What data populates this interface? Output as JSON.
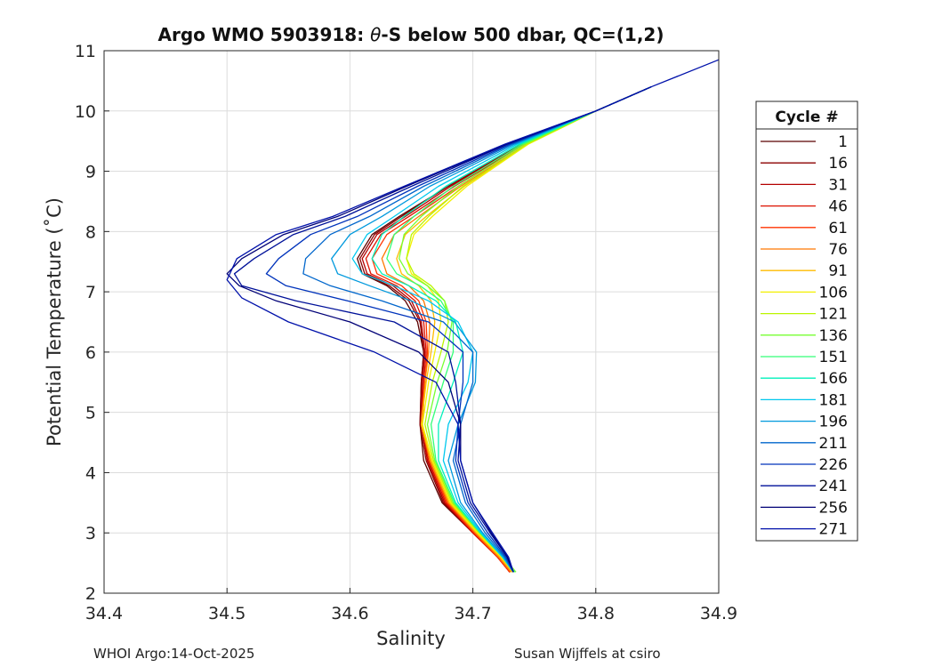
{
  "chart_data": {
    "type": "line",
    "title": "Argo WMO 5903918: θ-S below 500 dbar,  QC=(1,2)",
    "title_parts": {
      "prefix": "Argo WMO 5903918: ",
      "symbol": "θ",
      "suffix": "-S below 500 dbar,  QC=(1,2)"
    },
    "xlabel": "Salinity",
    "ylabel": "Potential Temperature (˚C)",
    "xlim": [
      34.4,
      34.9
    ],
    "ylim": [
      2,
      11
    ],
    "xticks": [
      "34.4",
      "34.5",
      "34.6",
      "34.7",
      "34.8",
      "34.9"
    ],
    "yticks": [
      "2",
      "3",
      "4",
      "5",
      "6",
      "7",
      "8",
      "9",
      "10",
      "11"
    ],
    "grid": true,
    "legend": {
      "title": "Cycle #",
      "placement": "right, outside plot",
      "entries": [
        {
          "label": "1",
          "color": "#5a0000"
        },
        {
          "label": "16",
          "color": "#8b0000"
        },
        {
          "label": "31",
          "color": "#b40000"
        },
        {
          "label": "46",
          "color": "#dd1100"
        },
        {
          "label": "61",
          "color": "#ff3300"
        },
        {
          "label": "76",
          "color": "#ff7700"
        },
        {
          "label": "91",
          "color": "#ffbb00"
        },
        {
          "label": "106",
          "color": "#f3f000"
        },
        {
          "label": "121",
          "color": "#bbf500"
        },
        {
          "label": "136",
          "color": "#77ff33"
        },
        {
          "label": "151",
          "color": "#33ff77"
        },
        {
          "label": "166",
          "color": "#00f0bb"
        },
        {
          "label": "181",
          "color": "#00c8ee"
        },
        {
          "label": "196",
          "color": "#0099dd"
        },
        {
          "label": "211",
          "color": "#0066cc"
        },
        {
          "label": "226",
          "color": "#0033bb"
        },
        {
          "label": "241",
          "color": "#001199"
        },
        {
          "label": "256",
          "color": "#000077"
        },
        {
          "label": "271",
          "color": "#0011aa"
        }
      ]
    },
    "series": [
      {
        "name": "1",
        "color": "#5a0000",
        "x": [
          34.845,
          34.8,
          34.74,
          34.68,
          34.64,
          34.618,
          34.606,
          34.61,
          34.63,
          34.645,
          34.655,
          34.66,
          34.658,
          34.657,
          34.66,
          34.675,
          34.7,
          34.72,
          34.73
        ],
        "y": [
          10.4,
          10.0,
          9.45,
          8.75,
          8.25,
          7.95,
          7.55,
          7.3,
          7.1,
          6.85,
          6.5,
          6.0,
          5.5,
          4.8,
          4.2,
          3.5,
          3.0,
          2.6,
          2.35
        ]
      },
      {
        "name": "16",
        "color": "#8b0000",
        "x": [
          34.845,
          34.8,
          34.74,
          34.68,
          34.642,
          34.62,
          34.608,
          34.612,
          34.632,
          34.648,
          34.657,
          34.66,
          34.658,
          34.657,
          34.662,
          34.676,
          34.7,
          34.72,
          34.73
        ],
        "y": [
          10.4,
          10.0,
          9.45,
          8.75,
          8.25,
          7.95,
          7.55,
          7.3,
          7.1,
          6.85,
          6.5,
          6.0,
          5.5,
          4.8,
          4.2,
          3.5,
          3.0,
          2.6,
          2.35
        ]
      },
      {
        "name": "31",
        "color": "#b40000",
        "x": [
          34.845,
          34.8,
          34.74,
          34.682,
          34.645,
          34.622,
          34.61,
          34.614,
          34.635,
          34.65,
          34.658,
          34.661,
          34.659,
          34.658,
          34.663,
          34.677,
          34.7,
          34.72,
          34.73
        ],
        "y": [
          10.4,
          10.0,
          9.45,
          8.75,
          8.25,
          7.95,
          7.55,
          7.3,
          7.1,
          6.85,
          6.5,
          6.0,
          5.5,
          4.8,
          4.2,
          3.5,
          3.0,
          2.6,
          2.35
        ]
      },
      {
        "name": "46",
        "color": "#dd1100",
        "x": [
          34.845,
          34.8,
          34.742,
          34.685,
          34.648,
          34.625,
          34.613,
          34.617,
          34.638,
          34.653,
          34.66,
          34.662,
          34.66,
          34.658,
          34.664,
          34.678,
          34.7,
          34.72,
          34.73
        ],
        "y": [
          10.4,
          10.0,
          9.45,
          8.75,
          8.25,
          7.95,
          7.55,
          7.3,
          7.1,
          6.85,
          6.5,
          6.0,
          5.5,
          4.8,
          4.2,
          3.5,
          3.0,
          2.6,
          2.35
        ]
      },
      {
        "name": "61",
        "color": "#ff3300",
        "x": [
          34.845,
          34.8,
          34.742,
          34.688,
          34.652,
          34.63,
          34.618,
          34.622,
          34.642,
          34.656,
          34.662,
          34.663,
          34.661,
          34.659,
          34.665,
          34.679,
          34.701,
          34.72,
          34.73
        ],
        "y": [
          10.4,
          10.0,
          9.45,
          8.75,
          8.25,
          7.95,
          7.55,
          7.3,
          7.1,
          6.85,
          6.5,
          6.0,
          5.5,
          4.8,
          4.2,
          3.5,
          3.0,
          2.6,
          2.35
        ]
      },
      {
        "name": "76",
        "color": "#ff7700",
        "x": [
          34.845,
          34.8,
          34.744,
          34.69,
          34.656,
          34.636,
          34.626,
          34.63,
          34.648,
          34.66,
          34.665,
          34.664,
          34.661,
          34.658,
          34.665,
          34.68,
          34.702,
          34.721,
          34.731
        ],
        "y": [
          10.4,
          10.0,
          9.45,
          8.75,
          8.25,
          7.95,
          7.55,
          7.3,
          7.1,
          6.85,
          6.5,
          6.0,
          5.5,
          4.8,
          4.2,
          3.5,
          3.0,
          2.6,
          2.35
        ]
      },
      {
        "name": "91",
        "color": "#ffbb00",
        "x": [
          34.845,
          34.8,
          34.745,
          34.693,
          34.662,
          34.645,
          34.638,
          34.642,
          34.656,
          34.666,
          34.669,
          34.666,
          34.662,
          34.658,
          34.666,
          34.681,
          34.703,
          34.722,
          34.732
        ],
        "y": [
          10.4,
          10.0,
          9.45,
          8.75,
          8.25,
          7.95,
          7.55,
          7.3,
          7.1,
          6.85,
          6.5,
          6.0,
          5.5,
          4.8,
          4.2,
          3.5,
          3.0,
          2.6,
          2.35
        ]
      },
      {
        "name": "106",
        "color": "#f3f000",
        "x": [
          34.845,
          34.8,
          34.745,
          34.695,
          34.667,
          34.652,
          34.646,
          34.65,
          34.663,
          34.672,
          34.674,
          34.669,
          34.664,
          34.659,
          34.667,
          34.682,
          34.704,
          34.723,
          34.733
        ],
        "y": [
          10.4,
          10.0,
          9.45,
          8.75,
          8.25,
          7.95,
          7.55,
          7.3,
          7.1,
          6.85,
          6.5,
          6.0,
          5.5,
          4.8,
          4.2,
          3.5,
          3.0,
          2.6,
          2.35
        ]
      },
      {
        "name": "121",
        "color": "#bbf500",
        "x": [
          34.845,
          34.8,
          34.744,
          34.692,
          34.664,
          34.65,
          34.646,
          34.652,
          34.666,
          34.677,
          34.68,
          34.674,
          34.667,
          34.661,
          34.668,
          34.683,
          34.705,
          34.724,
          34.734
        ],
        "y": [
          10.4,
          10.0,
          9.45,
          8.75,
          8.25,
          7.95,
          7.55,
          7.3,
          7.1,
          6.85,
          6.5,
          6.0,
          5.5,
          4.8,
          4.2,
          3.5,
          3.0,
          2.6,
          2.35
        ]
      },
      {
        "name": "136",
        "color": "#77ff33",
        "x": [
          34.845,
          34.8,
          34.742,
          34.688,
          34.658,
          34.644,
          34.64,
          34.647,
          34.663,
          34.677,
          34.683,
          34.679,
          34.671,
          34.663,
          34.669,
          34.684,
          34.706,
          34.725,
          34.735
        ],
        "y": [
          10.4,
          10.0,
          9.45,
          8.75,
          8.25,
          7.95,
          7.55,
          7.3,
          7.1,
          6.85,
          6.5,
          6.0,
          5.5,
          4.8,
          4.2,
          3.5,
          3.0,
          2.6,
          2.35
        ]
      },
      {
        "name": "151",
        "color": "#33ff77",
        "x": [
          34.845,
          34.8,
          34.74,
          34.684,
          34.652,
          34.636,
          34.63,
          34.638,
          34.657,
          34.674,
          34.684,
          34.684,
          34.676,
          34.666,
          34.67,
          34.685,
          34.706,
          34.725,
          34.734
        ],
        "y": [
          10.4,
          10.0,
          9.45,
          8.75,
          8.25,
          7.95,
          7.55,
          7.3,
          7.1,
          6.85,
          6.5,
          6.0,
          5.5,
          4.8,
          4.2,
          3.5,
          3.0,
          2.6,
          2.35
        ]
      },
      {
        "name": "166",
        "color": "#00f0bb",
        "x": [
          34.845,
          34.8,
          34.738,
          34.678,
          34.644,
          34.626,
          34.618,
          34.626,
          34.648,
          34.67,
          34.686,
          34.692,
          34.684,
          34.672,
          34.672,
          34.686,
          34.706,
          34.724,
          34.733
        ],
        "y": [
          10.4,
          10.0,
          9.45,
          8.75,
          8.25,
          7.95,
          7.55,
          7.3,
          7.1,
          6.85,
          6.5,
          6.0,
          5.5,
          4.8,
          4.2,
          3.5,
          3.0,
          2.6,
          2.35
        ]
      },
      {
        "name": "181",
        "color": "#00c8ee",
        "x": [
          34.845,
          34.8,
          34.736,
          34.672,
          34.636,
          34.614,
          34.602,
          34.61,
          34.636,
          34.664,
          34.688,
          34.7,
          34.696,
          34.68,
          34.676,
          34.688,
          34.707,
          34.724,
          34.733
        ],
        "y": [
          10.4,
          10.0,
          9.45,
          8.75,
          8.25,
          7.95,
          7.55,
          7.3,
          7.1,
          6.85,
          6.5,
          6.0,
          5.5,
          4.8,
          4.2,
          3.5,
          3.0,
          2.6,
          2.35
        ]
      },
      {
        "name": "196",
        "color": "#0099dd",
        "x": [
          34.845,
          34.8,
          34.734,
          34.665,
          34.626,
          34.6,
          34.585,
          34.59,
          34.616,
          34.65,
          34.685,
          34.703,
          34.702,
          34.688,
          34.68,
          34.69,
          34.708,
          34.725,
          34.733
        ],
        "y": [
          10.4,
          10.0,
          9.45,
          8.75,
          8.25,
          7.95,
          7.55,
          7.3,
          7.1,
          6.85,
          6.5,
          6.0,
          5.5,
          4.8,
          4.2,
          3.5,
          3.0,
          2.6,
          2.35
        ]
      },
      {
        "name": "211",
        "color": "#0066cc",
        "x": [
          34.845,
          34.8,
          34.732,
          34.66,
          34.616,
          34.584,
          34.564,
          34.562,
          34.584,
          34.626,
          34.676,
          34.7,
          34.7,
          34.69,
          34.684,
          34.694,
          34.71,
          34.726,
          34.733
        ],
        "y": [
          10.4,
          10.0,
          9.45,
          8.75,
          8.25,
          7.95,
          7.55,
          7.3,
          7.1,
          6.85,
          6.5,
          6.0,
          5.5,
          4.8,
          4.2,
          3.5,
          3.0,
          2.6,
          2.35
        ]
      },
      {
        "name": "226",
        "color": "#0033bb",
        "x": [
          34.845,
          34.8,
          34.73,
          34.655,
          34.606,
          34.568,
          34.542,
          34.532,
          34.548,
          34.598,
          34.664,
          34.692,
          34.692,
          34.688,
          34.686,
          34.696,
          34.712,
          34.727,
          34.733
        ],
        "y": [
          10.4,
          10.0,
          9.45,
          8.75,
          8.25,
          7.95,
          7.55,
          7.3,
          7.1,
          6.85,
          6.5,
          6.0,
          5.5,
          4.8,
          4.2,
          3.5,
          3.0,
          2.6,
          2.35
        ]
      },
      {
        "name": "241",
        "color": "#001199",
        "x": [
          34.845,
          34.8,
          34.728,
          34.65,
          34.596,
          34.554,
          34.522,
          34.506,
          34.512,
          34.556,
          34.636,
          34.68,
          34.686,
          34.69,
          34.688,
          34.698,
          34.714,
          34.728,
          34.733
        ],
        "y": [
          10.4,
          10.0,
          9.45,
          8.75,
          8.25,
          7.95,
          7.55,
          7.3,
          7.1,
          6.85,
          6.5,
          6.0,
          5.5,
          4.8,
          4.2,
          3.5,
          3.0,
          2.6,
          2.35
        ]
      },
      {
        "name": "256",
        "color": "#000077",
        "x": [
          34.845,
          34.8,
          34.727,
          34.646,
          34.59,
          34.546,
          34.512,
          34.5,
          34.51,
          34.54,
          34.6,
          34.656,
          34.68,
          34.69,
          34.69,
          34.7,
          34.715,
          34.728,
          34.733
        ],
        "y": [
          10.4,
          10.0,
          9.45,
          8.75,
          8.25,
          7.95,
          7.55,
          7.3,
          7.1,
          6.85,
          6.5,
          6.0,
          5.5,
          4.8,
          4.2,
          3.5,
          3.0,
          2.6,
          2.35
        ]
      },
      {
        "name": "271",
        "color": "#0011aa",
        "x": [
          34.9,
          34.845,
          34.8,
          34.726,
          34.644,
          34.586,
          34.54,
          34.508,
          34.5,
          34.512,
          34.55,
          34.62,
          34.67,
          34.688,
          34.69,
          34.7,
          34.716,
          34.729,
          34.733
        ],
        "y": [
          10.85,
          10.4,
          10.0,
          9.45,
          8.75,
          8.25,
          7.95,
          7.55,
          7.2,
          6.9,
          6.5,
          6.0,
          5.5,
          4.8,
          4.2,
          3.5,
          3.0,
          2.6,
          2.35
        ]
      }
    ]
  },
  "footer": {
    "left": "WHOI Argo:14-Oct-2025",
    "right": "Susan Wijffels at csiro"
  }
}
